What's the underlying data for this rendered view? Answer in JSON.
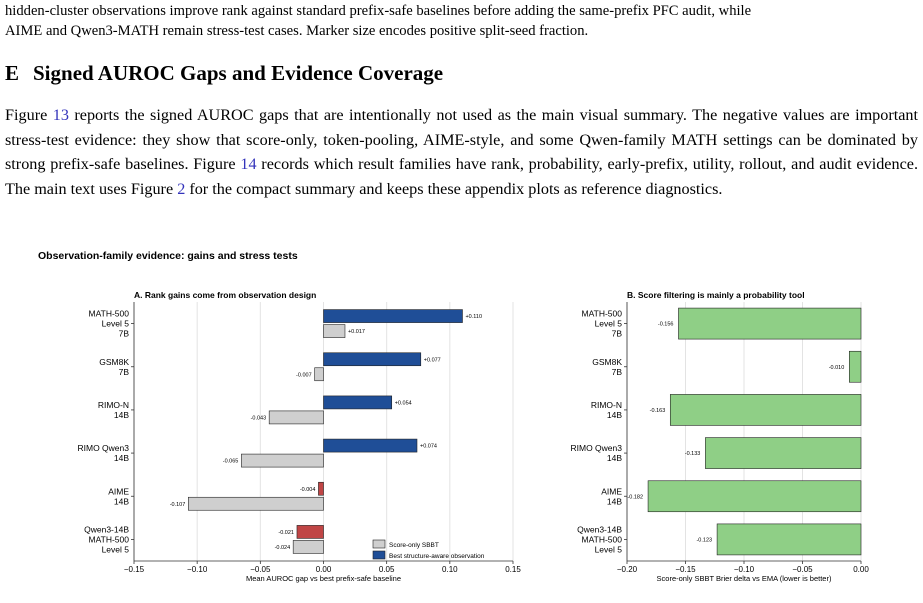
{
  "top_text": {
    "line1": "hidden-cluster observations improve rank against standard prefix-safe baselines before adding the same-prefix PFC audit, while",
    "line2": "AIME and Qwen3-MATH remain stress-test cases. Marker size encodes positive split-seed fraction."
  },
  "section": {
    "number": "E",
    "title": "Signed AUROC Gaps and Evidence Coverage"
  },
  "paragraph": {
    "p1": "Figure ",
    "ref1": "13",
    "p2": " reports the signed AUROC gaps that are intentionally not used as the main visual summary. The negative values are important stress-test evidence: they show that score-only, token-pooling, AIME-style, and some Qwen-family MATH settings can be dominated by strong prefix-safe baselines. Figure ",
    "ref2": "14",
    "p3": " records which result families have rank, probability, early-prefix, utility, rollout, and audit evidence. The main text uses Figure ",
    "ref3": "2",
    "p4": " for the compact summary and keeps these appendix plots as reference diagnostics."
  },
  "figure_title": "Observation-family evidence: gains and stress tests",
  "colors": {
    "score_only": "#cfcfcf",
    "structure_aware": "#1f4e97",
    "negative_structure": "#c04545",
    "brier": "#8fcf86"
  },
  "chart_data": [
    {
      "type": "bar",
      "orientation": "horizontal",
      "title": "A. Rank gains come from observation design",
      "xlabel": "Mean AUROC gap vs best prefix-safe baseline",
      "xlim": [
        -0.15,
        0.15
      ],
      "xticks": [
        "−0.15",
        "−0.10",
        "−0.05",
        "0.00",
        "0.05",
        "0.10",
        "0.15"
      ],
      "tick_values": [
        -0.15,
        -0.1,
        -0.05,
        0.0,
        0.05,
        0.1,
        0.15
      ],
      "grid": true,
      "legend_position": "bottom-right",
      "categories": [
        [
          "MATH-500",
          "Level 5",
          "7B"
        ],
        [
          "GSM8K",
          "7B"
        ],
        [
          "RIMO-N",
          "14B"
        ],
        [
          "RIMO Qwen3",
          "14B"
        ],
        [
          "AIME",
          "14B"
        ],
        [
          "Qwen3-14B",
          "MATH-500",
          "Level 5"
        ]
      ],
      "series": [
        {
          "name": "Best structure-aware observation",
          "values": [
            0.11,
            0.077,
            0.054,
            0.074,
            -0.004,
            -0.021
          ],
          "labels": [
            "+0.110",
            "+0.077",
            "+0.054",
            "+0.074",
            "-0.004",
            "-0.021"
          ]
        },
        {
          "name": "Score-only SBBT",
          "values": [
            0.017,
            -0.007,
            -0.043,
            -0.065,
            -0.107,
            -0.024
          ],
          "labels": [
            "+0.017",
            "-0.007",
            "-0.043",
            "-0.065",
            "-0.107",
            "-0.024"
          ]
        }
      ]
    },
    {
      "type": "bar",
      "orientation": "horizontal",
      "title": "B. Score filtering is mainly a probability tool",
      "xlabel": "Score-only SBBT Brier delta vs EMA (lower is better)",
      "xlim": [
        -0.2,
        0.0
      ],
      "xticks": [
        "−0.20",
        "−0.15",
        "−0.10",
        "−0.05",
        "0.00"
      ],
      "tick_values": [
        -0.2,
        -0.15,
        -0.1,
        -0.05,
        0.0
      ],
      "grid": true,
      "categories": [
        [
          "MATH-500",
          "Level 5",
          "7B"
        ],
        [
          "GSM8K",
          "7B"
        ],
        [
          "RIMO-N",
          "14B"
        ],
        [
          "RIMO Qwen3",
          "14B"
        ],
        [
          "AIME",
          "14B"
        ],
        [
          "Qwen3-14B",
          "MATH-500",
          "Level 5"
        ]
      ],
      "series": [
        {
          "values": [
            -0.156,
            -0.01,
            -0.163,
            -0.133,
            -0.182,
            -0.123
          ],
          "labels": [
            "-0.156",
            "-0.010",
            "-0.163",
            "-0.133",
            "-0.182",
            "-0.123"
          ]
        }
      ]
    }
  ]
}
